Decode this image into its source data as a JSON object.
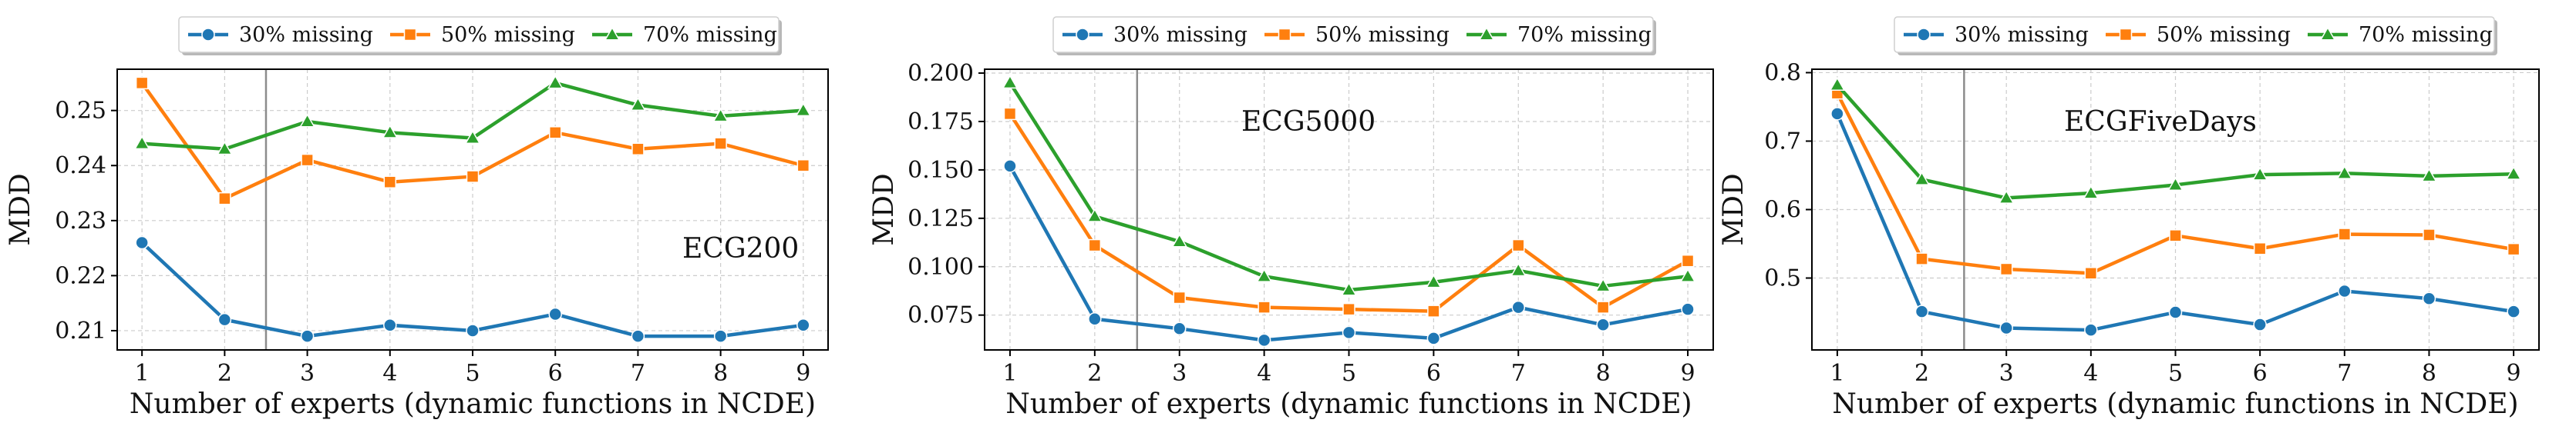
{
  "chart_data": [
    {
      "type": "line",
      "panel": "ECG200",
      "annotation": "ECG200",
      "xlabel": "Number of experts (dynamic functions in NCDE)",
      "ylabel": "MDD",
      "x": [
        1,
        2,
        3,
        4,
        5,
        6,
        7,
        8,
        9
      ],
      "xlim": [
        0.7,
        9.3
      ],
      "ylim": [
        0.2065,
        0.2575
      ],
      "yticks": [
        "0.21",
        "0.22",
        "0.23",
        "0.24",
        "0.25"
      ],
      "ytick_values": [
        0.21,
        0.22,
        0.23,
        0.24,
        0.25
      ],
      "vline_x": 2.5,
      "grid": true,
      "legend_position": "top-center",
      "series": [
        {
          "name": "30% missing",
          "color": "#1f77b4",
          "marker": "circle",
          "values": [
            0.226,
            0.212,
            0.209,
            0.211,
            0.21,
            0.213,
            0.209,
            0.209,
            0.211
          ]
        },
        {
          "name": "50% missing",
          "color": "#ff7f0e",
          "marker": "square",
          "values": [
            0.255,
            0.234,
            0.241,
            0.237,
            0.238,
            0.246,
            0.243,
            0.244,
            0.24
          ]
        },
        {
          "name": "70% missing",
          "color": "#2ca02c",
          "marker": "triangle",
          "values": [
            0.244,
            0.243,
            0.248,
            0.246,
            0.245,
            0.255,
            0.251,
            0.249,
            0.25
          ]
        }
      ]
    },
    {
      "type": "line",
      "panel": "ECG5000",
      "annotation": "ECG5000",
      "xlabel": "Number of experts (dynamic functions in NCDE)",
      "ylabel": "MDD",
      "x": [
        1,
        2,
        3,
        4,
        5,
        6,
        7,
        8,
        9
      ],
      "xlim": [
        0.7,
        9.3
      ],
      "ylim": [
        0.057,
        0.202
      ],
      "yticks": [
        "0.075",
        "0.100",
        "0.125",
        "0.150",
        "0.175",
        "0.200"
      ],
      "ytick_values": [
        0.075,
        0.1,
        0.125,
        0.15,
        0.175,
        0.2
      ],
      "vline_x": 2.5,
      "grid": true,
      "legend_position": "top-center",
      "series": [
        {
          "name": "30% missing",
          "color": "#1f77b4",
          "marker": "circle",
          "values": [
            0.152,
            0.073,
            0.068,
            0.062,
            0.066,
            0.063,
            0.079,
            0.07,
            0.078
          ]
        },
        {
          "name": "50% missing",
          "color": "#ff7f0e",
          "marker": "square",
          "values": [
            0.179,
            0.111,
            0.084,
            0.079,
            0.078,
            0.077,
            0.111,
            0.079,
            0.103
          ]
        },
        {
          "name": "70% missing",
          "color": "#2ca02c",
          "marker": "triangle",
          "values": [
            0.195,
            0.126,
            0.113,
            0.095,
            0.088,
            0.092,
            0.098,
            0.09,
            0.095
          ]
        }
      ]
    },
    {
      "type": "line",
      "panel": "ECGFiveDays",
      "annotation": "ECGFiveDays",
      "xlabel": "Number of experts (dynamic functions in NCDE)",
      "ylabel": "MDD",
      "x": [
        1,
        2,
        3,
        4,
        5,
        6,
        7,
        8,
        9
      ],
      "xlim": [
        0.7,
        9.3
      ],
      "ylim": [
        0.395,
        0.805
      ],
      "yticks": [
        "0.5",
        "0.6",
        "0.7",
        "0.8"
      ],
      "ytick_values": [
        0.5,
        0.6,
        0.7,
        0.8
      ],
      "vline_x": 2.5,
      "grid": true,
      "legend_position": "top-center",
      "series": [
        {
          "name": "30% missing",
          "color": "#1f77b4",
          "marker": "circle",
          "values": [
            0.74,
            0.451,
            0.427,
            0.424,
            0.45,
            0.432,
            0.481,
            0.47,
            0.451
          ]
        },
        {
          "name": "50% missing",
          "color": "#ff7f0e",
          "marker": "square",
          "values": [
            0.77,
            0.528,
            0.513,
            0.507,
            0.562,
            0.543,
            0.564,
            0.563,
            0.542
          ]
        },
        {
          "name": "70% missing",
          "color": "#2ca02c",
          "marker": "triangle",
          "values": [
            0.782,
            0.644,
            0.617,
            0.624,
            0.636,
            0.651,
            0.653,
            0.649,
            0.652
          ]
        }
      ]
    }
  ]
}
